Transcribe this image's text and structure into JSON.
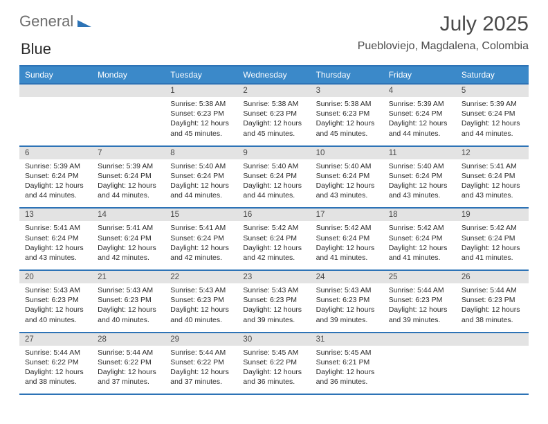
{
  "brand": {
    "part1": "General",
    "part2": "Blue"
  },
  "title": "July 2025",
  "location": "Puebloviejo, Magdalena, Colombia",
  "colors": {
    "brand_blue": "#2d73b6",
    "header_blue": "#3b89c9",
    "row_gray": "#e3e3e3",
    "text": "#2a2a2a",
    "muted": "#4a4a4a",
    "bg": "#ffffff"
  },
  "weekdays": [
    "Sunday",
    "Monday",
    "Tuesday",
    "Wednesday",
    "Thursday",
    "Friday",
    "Saturday"
  ],
  "weeks": [
    [
      {
        "num": "",
        "sr": "",
        "ss": "",
        "dl1": "",
        "dl2": ""
      },
      {
        "num": "",
        "sr": "",
        "ss": "",
        "dl1": "",
        "dl2": ""
      },
      {
        "num": "1",
        "sr": "Sunrise: 5:38 AM",
        "ss": "Sunset: 6:23 PM",
        "dl1": "Daylight: 12 hours",
        "dl2": "and 45 minutes."
      },
      {
        "num": "2",
        "sr": "Sunrise: 5:38 AM",
        "ss": "Sunset: 6:23 PM",
        "dl1": "Daylight: 12 hours",
        "dl2": "and 45 minutes."
      },
      {
        "num": "3",
        "sr": "Sunrise: 5:38 AM",
        "ss": "Sunset: 6:23 PM",
        "dl1": "Daylight: 12 hours",
        "dl2": "and 45 minutes."
      },
      {
        "num": "4",
        "sr": "Sunrise: 5:39 AM",
        "ss": "Sunset: 6:24 PM",
        "dl1": "Daylight: 12 hours",
        "dl2": "and 44 minutes."
      },
      {
        "num": "5",
        "sr": "Sunrise: 5:39 AM",
        "ss": "Sunset: 6:24 PM",
        "dl1": "Daylight: 12 hours",
        "dl2": "and 44 minutes."
      }
    ],
    [
      {
        "num": "6",
        "sr": "Sunrise: 5:39 AM",
        "ss": "Sunset: 6:24 PM",
        "dl1": "Daylight: 12 hours",
        "dl2": "and 44 minutes."
      },
      {
        "num": "7",
        "sr": "Sunrise: 5:39 AM",
        "ss": "Sunset: 6:24 PM",
        "dl1": "Daylight: 12 hours",
        "dl2": "and 44 minutes."
      },
      {
        "num": "8",
        "sr": "Sunrise: 5:40 AM",
        "ss": "Sunset: 6:24 PM",
        "dl1": "Daylight: 12 hours",
        "dl2": "and 44 minutes."
      },
      {
        "num": "9",
        "sr": "Sunrise: 5:40 AM",
        "ss": "Sunset: 6:24 PM",
        "dl1": "Daylight: 12 hours",
        "dl2": "and 44 minutes."
      },
      {
        "num": "10",
        "sr": "Sunrise: 5:40 AM",
        "ss": "Sunset: 6:24 PM",
        "dl1": "Daylight: 12 hours",
        "dl2": "and 43 minutes."
      },
      {
        "num": "11",
        "sr": "Sunrise: 5:40 AM",
        "ss": "Sunset: 6:24 PM",
        "dl1": "Daylight: 12 hours",
        "dl2": "and 43 minutes."
      },
      {
        "num": "12",
        "sr": "Sunrise: 5:41 AM",
        "ss": "Sunset: 6:24 PM",
        "dl1": "Daylight: 12 hours",
        "dl2": "and 43 minutes."
      }
    ],
    [
      {
        "num": "13",
        "sr": "Sunrise: 5:41 AM",
        "ss": "Sunset: 6:24 PM",
        "dl1": "Daylight: 12 hours",
        "dl2": "and 43 minutes."
      },
      {
        "num": "14",
        "sr": "Sunrise: 5:41 AM",
        "ss": "Sunset: 6:24 PM",
        "dl1": "Daylight: 12 hours",
        "dl2": "and 42 minutes."
      },
      {
        "num": "15",
        "sr": "Sunrise: 5:41 AM",
        "ss": "Sunset: 6:24 PM",
        "dl1": "Daylight: 12 hours",
        "dl2": "and 42 minutes."
      },
      {
        "num": "16",
        "sr": "Sunrise: 5:42 AM",
        "ss": "Sunset: 6:24 PM",
        "dl1": "Daylight: 12 hours",
        "dl2": "and 42 minutes."
      },
      {
        "num": "17",
        "sr": "Sunrise: 5:42 AM",
        "ss": "Sunset: 6:24 PM",
        "dl1": "Daylight: 12 hours",
        "dl2": "and 41 minutes."
      },
      {
        "num": "18",
        "sr": "Sunrise: 5:42 AM",
        "ss": "Sunset: 6:24 PM",
        "dl1": "Daylight: 12 hours",
        "dl2": "and 41 minutes."
      },
      {
        "num": "19",
        "sr": "Sunrise: 5:42 AM",
        "ss": "Sunset: 6:24 PM",
        "dl1": "Daylight: 12 hours",
        "dl2": "and 41 minutes."
      }
    ],
    [
      {
        "num": "20",
        "sr": "Sunrise: 5:43 AM",
        "ss": "Sunset: 6:23 PM",
        "dl1": "Daylight: 12 hours",
        "dl2": "and 40 minutes."
      },
      {
        "num": "21",
        "sr": "Sunrise: 5:43 AM",
        "ss": "Sunset: 6:23 PM",
        "dl1": "Daylight: 12 hours",
        "dl2": "and 40 minutes."
      },
      {
        "num": "22",
        "sr": "Sunrise: 5:43 AM",
        "ss": "Sunset: 6:23 PM",
        "dl1": "Daylight: 12 hours",
        "dl2": "and 40 minutes."
      },
      {
        "num": "23",
        "sr": "Sunrise: 5:43 AM",
        "ss": "Sunset: 6:23 PM",
        "dl1": "Daylight: 12 hours",
        "dl2": "and 39 minutes."
      },
      {
        "num": "24",
        "sr": "Sunrise: 5:43 AM",
        "ss": "Sunset: 6:23 PM",
        "dl1": "Daylight: 12 hours",
        "dl2": "and 39 minutes."
      },
      {
        "num": "25",
        "sr": "Sunrise: 5:44 AM",
        "ss": "Sunset: 6:23 PM",
        "dl1": "Daylight: 12 hours",
        "dl2": "and 39 minutes."
      },
      {
        "num": "26",
        "sr": "Sunrise: 5:44 AM",
        "ss": "Sunset: 6:23 PM",
        "dl1": "Daylight: 12 hours",
        "dl2": "and 38 minutes."
      }
    ],
    [
      {
        "num": "27",
        "sr": "Sunrise: 5:44 AM",
        "ss": "Sunset: 6:22 PM",
        "dl1": "Daylight: 12 hours",
        "dl2": "and 38 minutes."
      },
      {
        "num": "28",
        "sr": "Sunrise: 5:44 AM",
        "ss": "Sunset: 6:22 PM",
        "dl1": "Daylight: 12 hours",
        "dl2": "and 37 minutes."
      },
      {
        "num": "29",
        "sr": "Sunrise: 5:44 AM",
        "ss": "Sunset: 6:22 PM",
        "dl1": "Daylight: 12 hours",
        "dl2": "and 37 minutes."
      },
      {
        "num": "30",
        "sr": "Sunrise: 5:45 AM",
        "ss": "Sunset: 6:22 PM",
        "dl1": "Daylight: 12 hours",
        "dl2": "and 36 minutes."
      },
      {
        "num": "31",
        "sr": "Sunrise: 5:45 AM",
        "ss": "Sunset: 6:21 PM",
        "dl1": "Daylight: 12 hours",
        "dl2": "and 36 minutes."
      },
      {
        "num": "",
        "sr": "",
        "ss": "",
        "dl1": "",
        "dl2": ""
      },
      {
        "num": "",
        "sr": "",
        "ss": "",
        "dl1": "",
        "dl2": ""
      }
    ]
  ]
}
